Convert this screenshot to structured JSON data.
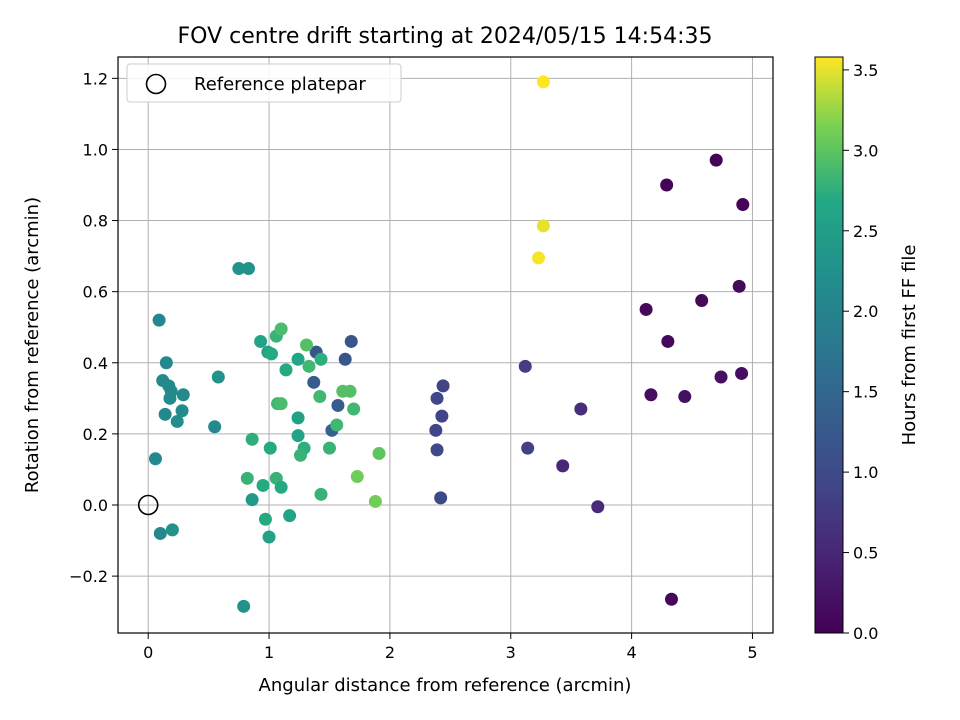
{
  "chart_data": {
    "type": "scatter",
    "title": "FOV centre drift starting at 2024/05/15 14:54:35",
    "xlabel": "Angular distance from reference (arcmin)",
    "ylabel": "Rotation from reference (arcmin)",
    "xlim": [
      -0.25,
      5.17
    ],
    "ylim": [
      -0.36,
      1.26
    ],
    "xticks": [
      "0",
      "1",
      "2",
      "3",
      "4",
      "5"
    ],
    "xtick_values": [
      0,
      1,
      2,
      3,
      4,
      5
    ],
    "yticks": [
      "−0.2",
      "0.0",
      "0.2",
      "0.4",
      "0.6",
      "0.8",
      "1.0",
      "1.2"
    ],
    "ytick_values": [
      -0.2,
      0.0,
      0.2,
      0.4,
      0.6,
      0.8,
      1.0,
      1.2
    ],
    "grid": true,
    "legend": {
      "placement": "top-left",
      "label": "Reference platepar"
    },
    "reference_point": {
      "x": 0,
      "y": 0
    },
    "colorbar": {
      "label": "Hours from first FF file",
      "range": [
        0,
        3.58
      ],
      "ticks": [
        "0.0",
        "0.5",
        "1.0",
        "1.5",
        "2.0",
        "2.5",
        "3.0",
        "3.5"
      ],
      "tick_values": [
        0,
        0.5,
        1.0,
        1.5,
        2.0,
        2.5,
        3.0,
        3.5
      ],
      "colormap": "viridis"
    },
    "points": [
      {
        "x": 4.29,
        "y": 0.9,
        "h": 0.05
      },
      {
        "x": 4.7,
        "y": 0.97,
        "h": 0.05
      },
      {
        "x": 4.92,
        "y": 0.845,
        "h": 0.05
      },
      {
        "x": 4.89,
        "y": 0.615,
        "h": 0.1
      },
      {
        "x": 4.58,
        "y": 0.575,
        "h": 0.1
      },
      {
        "x": 4.12,
        "y": 0.55,
        "h": 0.1
      },
      {
        "x": 4.3,
        "y": 0.46,
        "h": 0.1
      },
      {
        "x": 4.91,
        "y": 0.37,
        "h": 0.15
      },
      {
        "x": 4.74,
        "y": 0.36,
        "h": 0.2
      },
      {
        "x": 4.16,
        "y": 0.31,
        "h": 0.15
      },
      {
        "x": 4.44,
        "y": 0.305,
        "h": 0.2
      },
      {
        "x": 4.33,
        "y": -0.265,
        "h": 0.1
      },
      {
        "x": 3.58,
        "y": 0.27,
        "h": 0.6
      },
      {
        "x": 3.43,
        "y": 0.11,
        "h": 0.5
      },
      {
        "x": 3.72,
        "y": -0.005,
        "h": 0.55
      },
      {
        "x": 3.12,
        "y": 0.39,
        "h": 0.8
      },
      {
        "x": 3.14,
        "y": 0.16,
        "h": 0.85
      },
      {
        "x": 2.44,
        "y": 0.335,
        "h": 0.9
      },
      {
        "x": 2.39,
        "y": 0.3,
        "h": 0.95
      },
      {
        "x": 2.43,
        "y": 0.25,
        "h": 0.9
      },
      {
        "x": 2.38,
        "y": 0.21,
        "h": 0.95
      },
      {
        "x": 2.39,
        "y": 0.155,
        "h": 1.0
      },
      {
        "x": 2.42,
        "y": 0.02,
        "h": 1.0
      },
      {
        "x": 1.68,
        "y": 0.46,
        "h": 1.2
      },
      {
        "x": 1.63,
        "y": 0.41,
        "h": 1.2
      },
      {
        "x": 1.39,
        "y": 0.43,
        "h": 1.2
      },
      {
        "x": 1.37,
        "y": 0.345,
        "h": 1.3
      },
      {
        "x": 1.57,
        "y": 0.28,
        "h": 1.35
      },
      {
        "x": 1.52,
        "y": 0.21,
        "h": 1.4
      },
      {
        "x": 3.27,
        "y": 1.19,
        "h": 3.58
      },
      {
        "x": 3.27,
        "y": 0.785,
        "h": 3.5
      },
      {
        "x": 3.23,
        "y": 0.695,
        "h": 3.55
      },
      {
        "x": 0.09,
        "y": 0.52,
        "h": 2.05
      },
      {
        "x": 0.75,
        "y": 0.665,
        "h": 2.3
      },
      {
        "x": 0.83,
        "y": 0.665,
        "h": 2.3
      },
      {
        "x": 0.15,
        "y": 0.4,
        "h": 2.1
      },
      {
        "x": 0.12,
        "y": 0.35,
        "h": 2.1
      },
      {
        "x": 0.17,
        "y": 0.335,
        "h": 2.15
      },
      {
        "x": 0.19,
        "y": 0.32,
        "h": 2.1
      },
      {
        "x": 0.18,
        "y": 0.3,
        "h": 2.15
      },
      {
        "x": 0.29,
        "y": 0.31,
        "h": 2.1
      },
      {
        "x": 0.14,
        "y": 0.255,
        "h": 2.1
      },
      {
        "x": 0.28,
        "y": 0.265,
        "h": 2.15
      },
      {
        "x": 0.24,
        "y": 0.235,
        "h": 2.2
      },
      {
        "x": 0.58,
        "y": 0.36,
        "h": 2.3
      },
      {
        "x": 0.55,
        "y": 0.22,
        "h": 2.1
      },
      {
        "x": 0.06,
        "y": 0.13,
        "h": 2.1
      },
      {
        "x": 0.1,
        "y": -0.08,
        "h": 2.1
      },
      {
        "x": 0.2,
        "y": -0.07,
        "h": 2.3
      },
      {
        "x": 0.79,
        "y": -0.285,
        "h": 2.3
      },
      {
        "x": 0.93,
        "y": 0.46,
        "h": 2.6
      },
      {
        "x": 0.99,
        "y": 0.43,
        "h": 2.6
      },
      {
        "x": 1.02,
        "y": 0.425,
        "h": 2.7
      },
      {
        "x": 1.06,
        "y": 0.475,
        "h": 2.8
      },
      {
        "x": 1.1,
        "y": 0.495,
        "h": 2.9
      },
      {
        "x": 1.24,
        "y": 0.41,
        "h": 2.65
      },
      {
        "x": 1.14,
        "y": 0.38,
        "h": 2.7
      },
      {
        "x": 1.31,
        "y": 0.45,
        "h": 2.95
      },
      {
        "x": 1.33,
        "y": 0.39,
        "h": 2.85
      },
      {
        "x": 1.43,
        "y": 0.41,
        "h": 2.75
      },
      {
        "x": 1.07,
        "y": 0.285,
        "h": 2.85
      },
      {
        "x": 1.1,
        "y": 0.285,
        "h": 2.9
      },
      {
        "x": 1.24,
        "y": 0.245,
        "h": 2.55
      },
      {
        "x": 1.42,
        "y": 0.305,
        "h": 2.85
      },
      {
        "x": 1.61,
        "y": 0.32,
        "h": 2.95
      },
      {
        "x": 1.67,
        "y": 0.32,
        "h": 2.95
      },
      {
        "x": 1.7,
        "y": 0.27,
        "h": 2.85
      },
      {
        "x": 1.56,
        "y": 0.225,
        "h": 2.85
      },
      {
        "x": 1.24,
        "y": 0.195,
        "h": 2.6
      },
      {
        "x": 1.29,
        "y": 0.16,
        "h": 2.75
      },
      {
        "x": 1.26,
        "y": 0.14,
        "h": 2.8
      },
      {
        "x": 1.5,
        "y": 0.16,
        "h": 2.8
      },
      {
        "x": 0.86,
        "y": 0.185,
        "h": 2.75
      },
      {
        "x": 1.01,
        "y": 0.16,
        "h": 2.7
      },
      {
        "x": 0.82,
        "y": 0.075,
        "h": 2.8
      },
      {
        "x": 1.06,
        "y": 0.075,
        "h": 2.8
      },
      {
        "x": 0.95,
        "y": 0.055,
        "h": 2.7
      },
      {
        "x": 1.1,
        "y": 0.05,
        "h": 2.7
      },
      {
        "x": 0.86,
        "y": 0.015,
        "h": 2.4
      },
      {
        "x": 1.43,
        "y": 0.03,
        "h": 2.8
      },
      {
        "x": 1.73,
        "y": 0.08,
        "h": 3.1
      },
      {
        "x": 1.91,
        "y": 0.145,
        "h": 3.0
      },
      {
        "x": 1.88,
        "y": 0.01,
        "h": 3.1
      },
      {
        "x": 0.97,
        "y": -0.04,
        "h": 2.7
      },
      {
        "x": 1.17,
        "y": -0.03,
        "h": 2.6
      },
      {
        "x": 1.0,
        "y": -0.09,
        "h": 2.6
      }
    ]
  }
}
